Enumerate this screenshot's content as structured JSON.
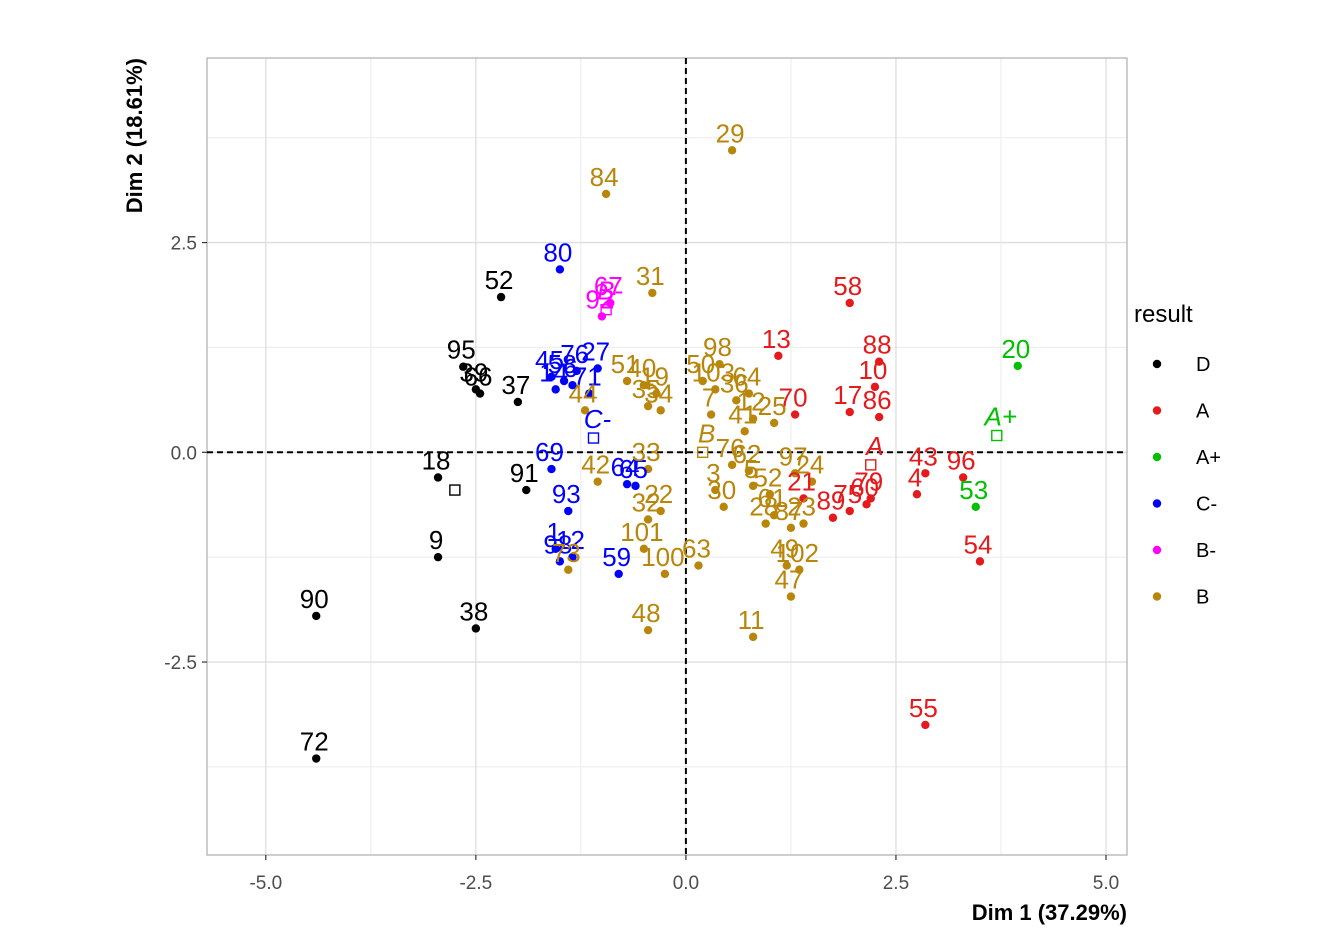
{
  "chart_data": {
    "type": "scatter",
    "xlabel": "Dim 1 (37.29%)",
    "ylabel": "Dim 2 (18.61%)",
    "xlim": [
      -5.7,
      5.25
    ],
    "ylim": [
      -4.8,
      4.7
    ],
    "x_ticks": [
      -5.0,
      -2.5,
      0.0,
      2.5,
      5.0
    ],
    "x_tick_labels": [
      "-5.0",
      "-2.5",
      "0.0",
      "2.5",
      "5.0"
    ],
    "y_ticks": [
      -2.5,
      0.0,
      2.5
    ],
    "y_tick_labels": [
      "-2.5",
      "0.0",
      "2.5"
    ],
    "grid": true,
    "reference_lines": {
      "x": 0,
      "y": 0,
      "style": "dashed"
    },
    "legend": {
      "title": "result",
      "placement": "right",
      "entries": [
        {
          "label": "D",
          "color": "#000000"
        },
        {
          "label": "A",
          "color": "#e41a1c"
        },
        {
          "label": "A+",
          "color": "#00c000"
        },
        {
          "label": "C-",
          "color": "#0000ff"
        },
        {
          "label": "B-",
          "color": "#ff00ff"
        },
        {
          "label": "B",
          "color": "#b8860b"
        }
      ]
    },
    "series": [
      {
        "name": "D",
        "color": "#000000",
        "points": [
          {
            "label": "52",
            "x": -2.2,
            "y": 1.85
          },
          {
            "label": "95",
            "x": -2.65,
            "y": 1.02
          },
          {
            "label": "39",
            "x": -2.5,
            "y": 0.75
          },
          {
            "label": "66",
            "x": -2.45,
            "y": 0.7
          },
          {
            "label": "37",
            "x": -2.0,
            "y": 0.6
          },
          {
            "label": "18",
            "x": -2.95,
            "y": -0.3
          },
          {
            "label": "91",
            "x": -1.9,
            "y": -0.45
          },
          {
            "label": "9",
            "x": -2.95,
            "y": -1.25
          },
          {
            "label": "38",
            "x": -2.5,
            "y": -2.1
          },
          {
            "label": "90",
            "x": -4.4,
            "y": -1.95
          },
          {
            "label": "72",
            "x": -4.4,
            "y": -3.65
          }
        ],
        "centroid": {
          "x": -2.75,
          "y": -0.45
        }
      },
      {
        "name": "A",
        "color": "#e41a1c",
        "points": [
          {
            "label": "58",
            "x": 1.95,
            "y": 1.78
          },
          {
            "label": "13",
            "x": 1.1,
            "y": 1.15
          },
          {
            "label": "88",
            "x": 2.3,
            "y": 1.08
          },
          {
            "label": "10",
            "x": 2.25,
            "y": 0.78
          },
          {
            "label": "70",
            "x": 1.3,
            "y": 0.45
          },
          {
            "label": "17",
            "x": 1.95,
            "y": 0.48
          },
          {
            "label": "86",
            "x": 2.3,
            "y": 0.42
          },
          {
            "label": "79",
            "x": 2.2,
            "y": -0.55
          },
          {
            "label": "4",
            "x": 2.75,
            "y": -0.5
          },
          {
            "label": "96",
            "x": 3.3,
            "y": -0.3
          },
          {
            "label": "43",
            "x": 2.85,
            "y": -0.25
          },
          {
            "label": "21",
            "x": 1.4,
            "y": -0.55
          },
          {
            "label": "60",
            "x": 2.15,
            "y": -0.62
          },
          {
            "label": "75",
            "x": 1.95,
            "y": -0.7
          },
          {
            "label": "89",
            "x": 1.75,
            "y": -0.78
          },
          {
            "label": "54",
            "x": 3.5,
            "y": -1.3
          },
          {
            "label": "55",
            "x": 2.85,
            "y": -3.25
          }
        ],
        "centroid_label": "A",
        "centroid": {
          "x": 2.2,
          "y": -0.15
        }
      },
      {
        "name": "A+",
        "color": "#00c000",
        "points": [
          {
            "label": "20",
            "x": 3.95,
            "y": 1.03
          },
          {
            "label": "53",
            "x": 3.45,
            "y": -0.65
          }
        ],
        "centroid_label": "A+",
        "centroid": {
          "x": 3.7,
          "y": 0.2
        }
      },
      {
        "name": "C-",
        "color": "#0000ff",
        "points": [
          {
            "label": "80",
            "x": -1.5,
            "y": 2.18
          },
          {
            "label": "76",
            "x": -1.3,
            "y": 0.97
          },
          {
            "label": "27",
            "x": -1.05,
            "y": 1.0
          },
          {
            "label": "45",
            "x": -1.6,
            "y": 0.9
          },
          {
            "label": "58",
            "x": -1.45,
            "y": 0.85
          },
          {
            "label": "14",
            "x": -1.55,
            "y": 0.75
          },
          {
            "label": "6",
            "x": -1.35,
            "y": 0.8
          },
          {
            "label": "71",
            "x": -1.15,
            "y": 0.7
          },
          {
            "label": "69",
            "x": -1.6,
            "y": -0.2
          },
          {
            "label": "64",
            "x": -0.7,
            "y": -0.38
          },
          {
            "label": "65",
            "x": -0.6,
            "y": -0.4
          },
          {
            "label": "93",
            "x": -1.4,
            "y": -0.7
          },
          {
            "label": "1",
            "x": -1.55,
            "y": -1.15
          },
          {
            "label": "98",
            "x": -1.5,
            "y": -1.3
          },
          {
            "label": "12",
            "x": -1.35,
            "y": -1.25
          },
          {
            "label": "59",
            "x": -0.8,
            "y": -1.45
          }
        ],
        "centroid_label": "C-",
        "centroid": {
          "x": -1.1,
          "y": 0.17
        }
      },
      {
        "name": "B-",
        "color": "#ff00ff",
        "points": [
          {
            "label": "67",
            "x": -0.9,
            "y": 1.78
          },
          {
            "label": "92",
            "x": -1.0,
            "y": 1.62
          }
        ],
        "centroid_label": "B-",
        "centroid": {
          "x": -0.95,
          "y": 1.7
        }
      },
      {
        "name": "B",
        "color": "#b8860b",
        "points": [
          {
            "label": "29",
            "x": 0.55,
            "y": 3.6
          },
          {
            "label": "84",
            "x": -0.95,
            "y": 3.08
          },
          {
            "label": "31",
            "x": -0.4,
            "y": 1.9
          },
          {
            "label": "98",
            "x": 0.4,
            "y": 1.05
          },
          {
            "label": "51",
            "x": -0.7,
            "y": 0.85
          },
          {
            "label": "40",
            "x": -0.5,
            "y": 0.8
          },
          {
            "label": "19",
            "x": -0.35,
            "y": 0.7
          },
          {
            "label": "50",
            "x": 0.2,
            "y": 0.85
          },
          {
            "label": "103",
            "x": 0.35,
            "y": 0.75
          },
          {
            "label": "35",
            "x": -0.45,
            "y": 0.55
          },
          {
            "label": "34",
            "x": -0.3,
            "y": 0.5
          },
          {
            "label": "36",
            "x": 0.6,
            "y": 0.62
          },
          {
            "label": "64",
            "x": 0.75,
            "y": 0.7
          },
          {
            "label": "44",
            "x": -1.2,
            "y": 0.5
          },
          {
            "label": "7",
            "x": 0.3,
            "y": 0.45
          },
          {
            "label": "12",
            "x": 0.8,
            "y": 0.4
          },
          {
            "label": "25",
            "x": 1.05,
            "y": 0.35
          },
          {
            "label": "41",
            "x": 0.7,
            "y": 0.25
          },
          {
            "label": "33",
            "x": -0.45,
            "y": -0.2
          },
          {
            "label": "42",
            "x": -1.05,
            "y": -0.35
          },
          {
            "label": "76",
            "x": 0.55,
            "y": -0.15
          },
          {
            "label": "62",
            "x": 0.75,
            "y": -0.22
          },
          {
            "label": "97",
            "x": 1.3,
            "y": -0.25
          },
          {
            "label": "24",
            "x": 1.5,
            "y": -0.35
          },
          {
            "label": "3",
            "x": 0.35,
            "y": -0.45
          },
          {
            "label": "5",
            "x": 0.8,
            "y": -0.4
          },
          {
            "label": "52",
            "x": 1.0,
            "y": -0.5
          },
          {
            "label": "30",
            "x": 0.45,
            "y": -0.65
          },
          {
            "label": "61",
            "x": 1.05,
            "y": -0.75
          },
          {
            "label": "22",
            "x": -0.3,
            "y": -0.7
          },
          {
            "label": "32",
            "x": -0.45,
            "y": -0.8
          },
          {
            "label": "28",
            "x": 0.95,
            "y": -0.85
          },
          {
            "label": "87",
            "x": 1.25,
            "y": -0.9
          },
          {
            "label": "23",
            "x": 1.4,
            "y": -0.85
          },
          {
            "label": "101",
            "x": -0.5,
            "y": -1.15
          },
          {
            "label": "100",
            "x": -0.25,
            "y": -1.45
          },
          {
            "label": "63",
            "x": 0.15,
            "y": -1.35
          },
          {
            "label": "73",
            "x": -1.4,
            "y": -1.4
          },
          {
            "label": "49",
            "x": 1.2,
            "y": -1.35
          },
          {
            "label": "102",
            "x": 1.35,
            "y": -1.4
          },
          {
            "label": "47",
            "x": 1.25,
            "y": -1.72
          },
          {
            "label": "48",
            "x": -0.45,
            "y": -2.12
          },
          {
            "label": "11",
            "x": 0.8,
            "y": -2.2
          }
        ],
        "centroid_label": "B",
        "centroid": {
          "x": 0.2,
          "y": 0.0
        }
      }
    ]
  }
}
